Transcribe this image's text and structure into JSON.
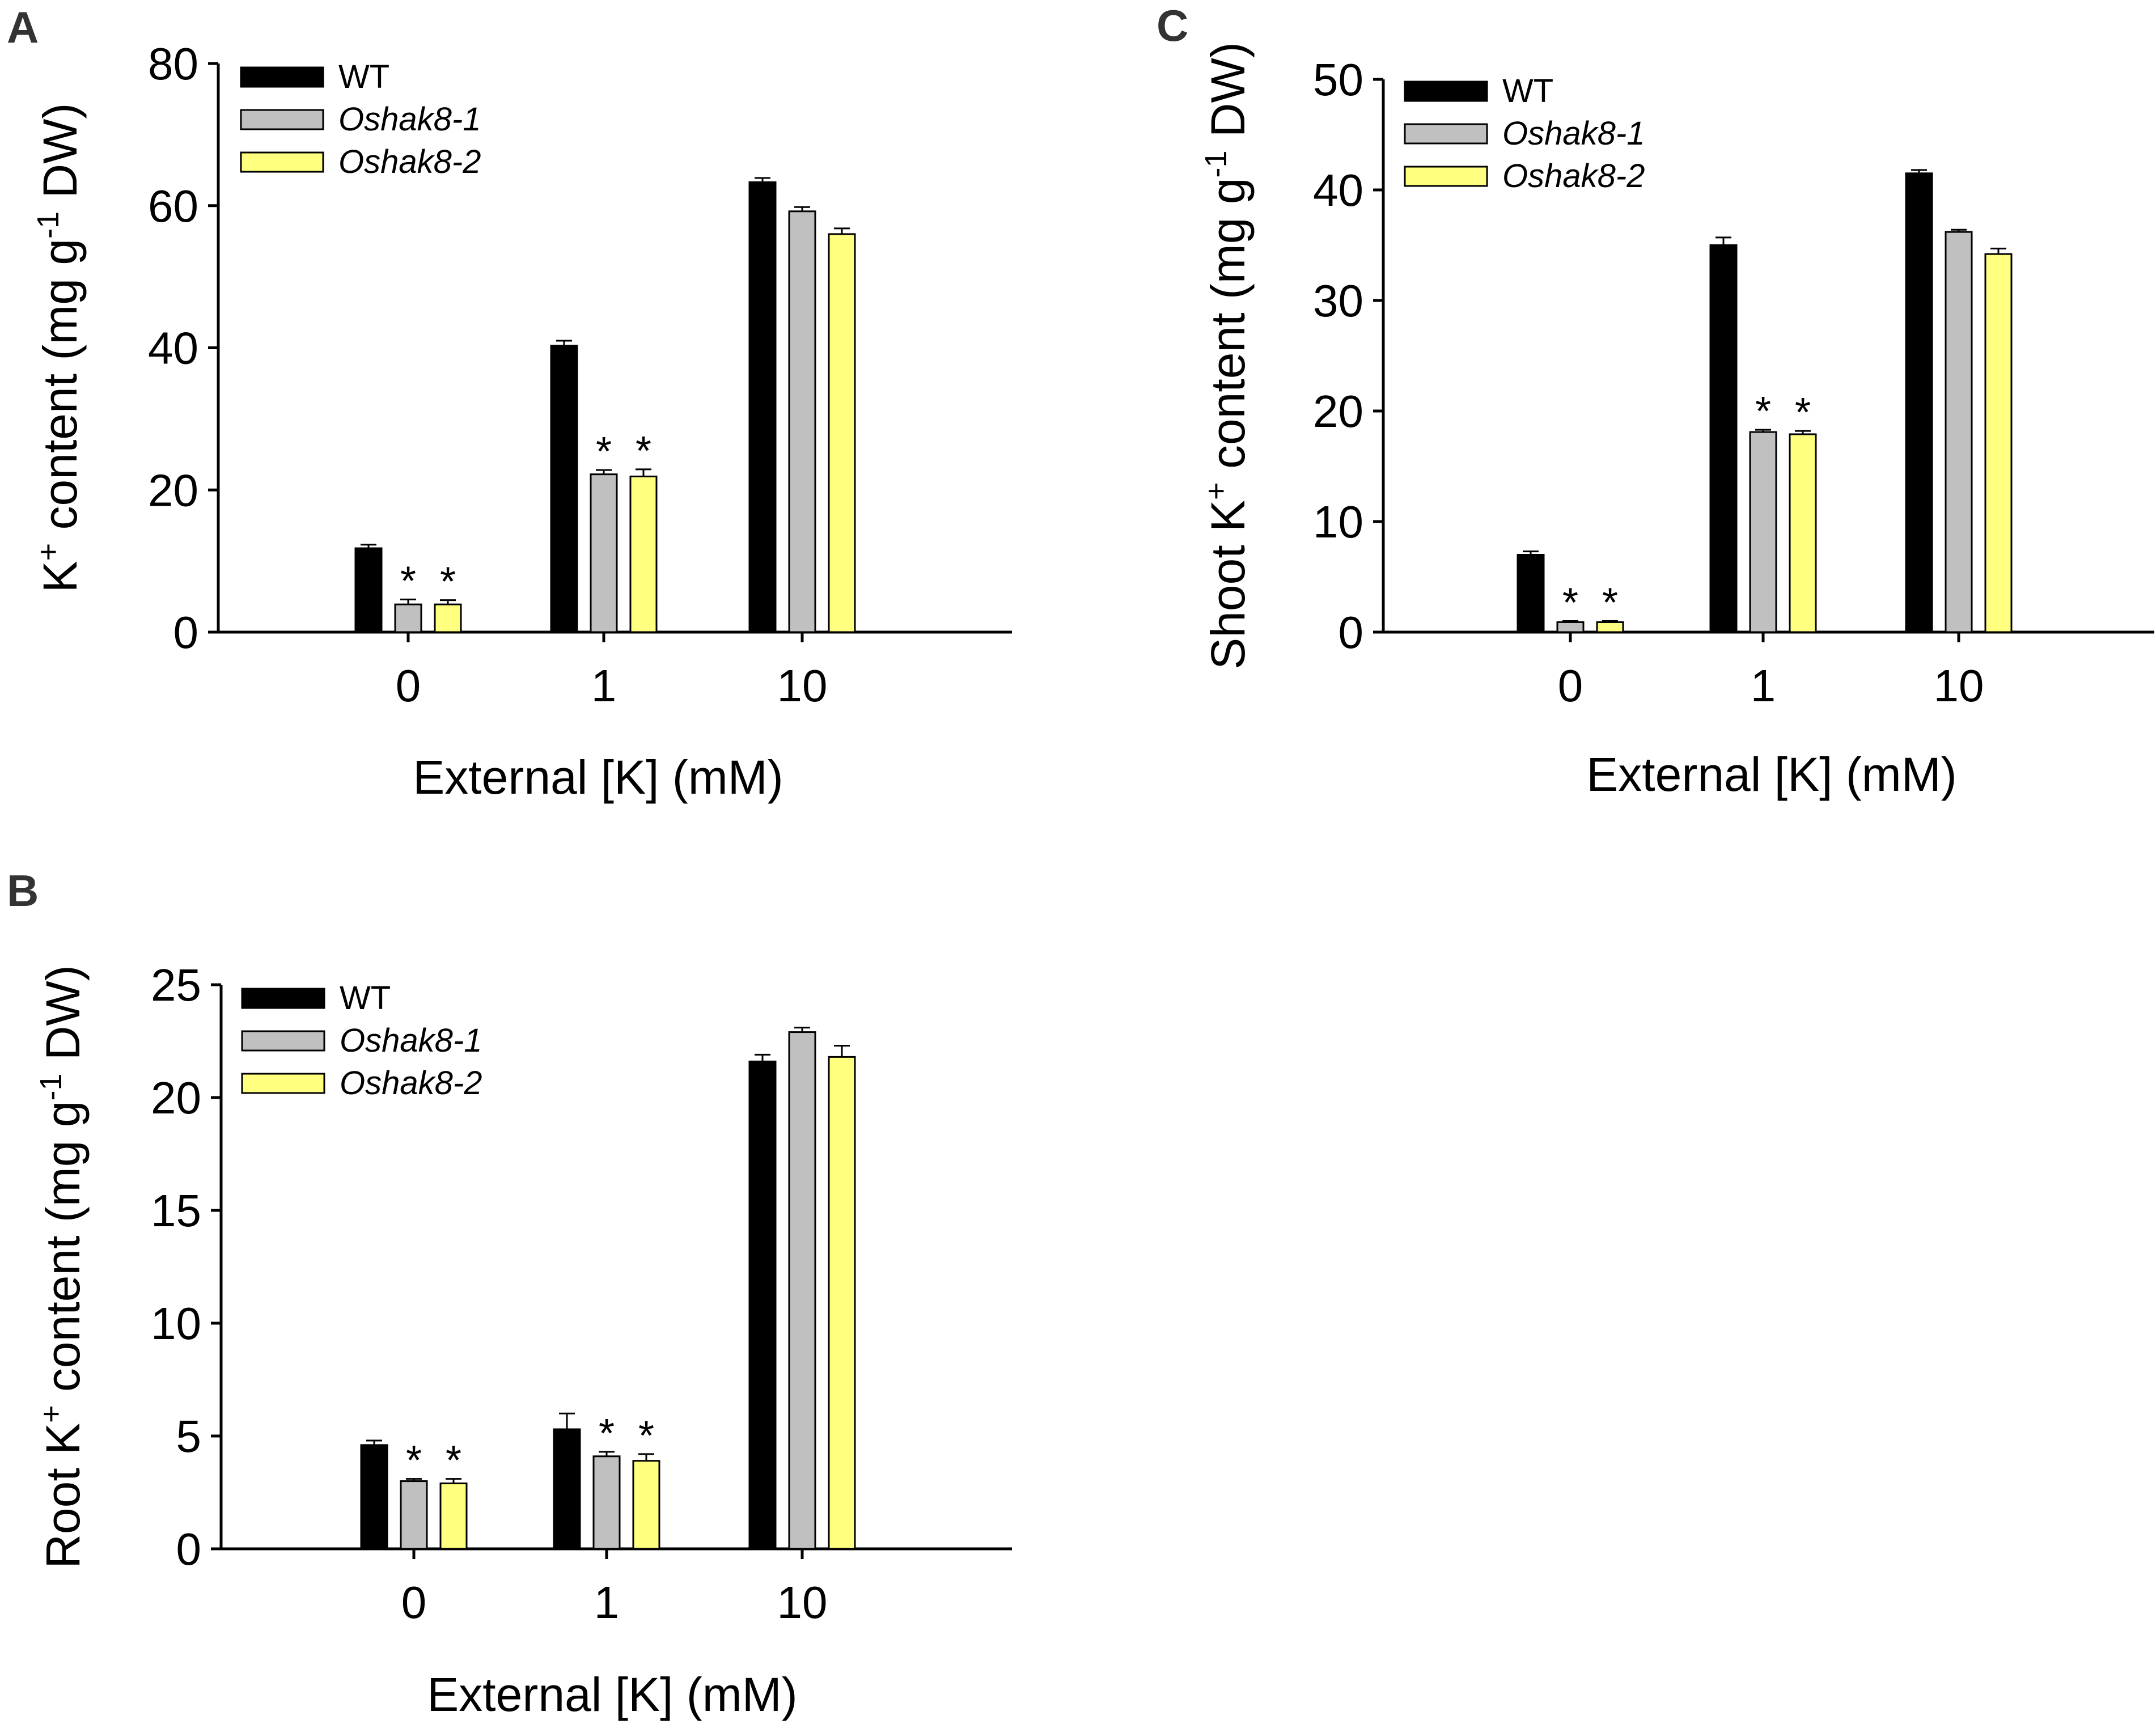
{
  "figure": {
    "series_names": [
      "WT",
      "Oshak8-1",
      "Oshak8-2"
    ],
    "series_colors": [
      "#000000",
      "#c0c0c0",
      "#ffff80"
    ]
  },
  "chart_data": [
    {
      "id": "A",
      "panel_label": "A",
      "type": "bar",
      "title": "",
      "xlabel": "External [K] (mM)",
      "ylabel_main": "K",
      "ylabel_sup": "+",
      "ylabel_rest": " content (mg g",
      "ylabel_sup2": "-1",
      "ylabel_end": " DW)",
      "categories": [
        "0",
        "1",
        "10"
      ],
      "ylim": [
        0,
        80
      ],
      "yticks": [
        0,
        20,
        40,
        60,
        80
      ],
      "series": [
        {
          "name": "WT",
          "values": [
            11.8,
            40.3,
            63.3
          ],
          "errors": [
            0.5,
            0.7,
            0.6
          ],
          "sig": [
            false,
            false,
            false
          ]
        },
        {
          "name": "Oshak8-1",
          "values": [
            3.9,
            22.2,
            59.2
          ],
          "errors": [
            0.7,
            0.6,
            0.6
          ],
          "sig": [
            true,
            true,
            false
          ]
        },
        {
          "name": "Oshak8-2",
          "values": [
            3.9,
            21.9,
            56.0
          ],
          "errors": [
            0.6,
            1.0,
            0.8
          ],
          "sig": [
            true,
            true,
            false
          ]
        }
      ],
      "significance_marker": "*"
    },
    {
      "id": "B",
      "panel_label": "B",
      "type": "bar",
      "title": "",
      "xlabel": "External [K] (mM)",
      "ylabel_main": "Root K",
      "ylabel_sup": "+",
      "ylabel_rest": " content (mg g",
      "ylabel_sup2": "-1",
      "ylabel_end": " DW)",
      "categories": [
        "0",
        "1",
        "10"
      ],
      "ylim": [
        0,
        25
      ],
      "yticks": [
        0,
        5,
        10,
        15,
        20,
        25
      ],
      "series": [
        {
          "name": "WT",
          "values": [
            4.6,
            5.3,
            21.6
          ],
          "errors": [
            0.2,
            0.7,
            0.3
          ],
          "sig": [
            false,
            false,
            false
          ]
        },
        {
          "name": "Oshak8-1",
          "values": [
            3.0,
            4.1,
            22.9
          ],
          "errors": [
            0.1,
            0.2,
            0.2
          ],
          "sig": [
            true,
            true,
            false
          ]
        },
        {
          "name": "Oshak8-2",
          "values": [
            2.9,
            3.9,
            21.8
          ],
          "errors": [
            0.2,
            0.3,
            0.5
          ],
          "sig": [
            true,
            true,
            false
          ]
        }
      ],
      "significance_marker": "*"
    },
    {
      "id": "C",
      "panel_label": "C",
      "type": "bar",
      "title": "",
      "xlabel": "External [K] (mM)",
      "ylabel_main": "Shoot K",
      "ylabel_sup": "+",
      "ylabel_rest": " content (mg g",
      "ylabel_sup2": "-1",
      "ylabel_end": " DW)",
      "categories": [
        "0",
        "1",
        "10"
      ],
      "ylim": [
        0,
        50
      ],
      "yticks": [
        0,
        10,
        20,
        30,
        40,
        50
      ],
      "series": [
        {
          "name": "WT",
          "values": [
            7.0,
            35.0,
            41.5
          ],
          "errors": [
            0.3,
            0.7,
            0.3
          ],
          "sig": [
            false,
            false,
            false
          ]
        },
        {
          "name": "Oshak8-1",
          "values": [
            0.9,
            18.1,
            36.2
          ],
          "errors": [
            0.1,
            0.2,
            0.2
          ],
          "sig": [
            true,
            true,
            false
          ]
        },
        {
          "name": "Oshak8-2",
          "values": [
            0.9,
            17.9,
            34.2
          ],
          "errors": [
            0.1,
            0.3,
            0.5
          ],
          "sig": [
            true,
            true,
            false
          ]
        }
      ],
      "significance_marker": "*"
    }
  ]
}
